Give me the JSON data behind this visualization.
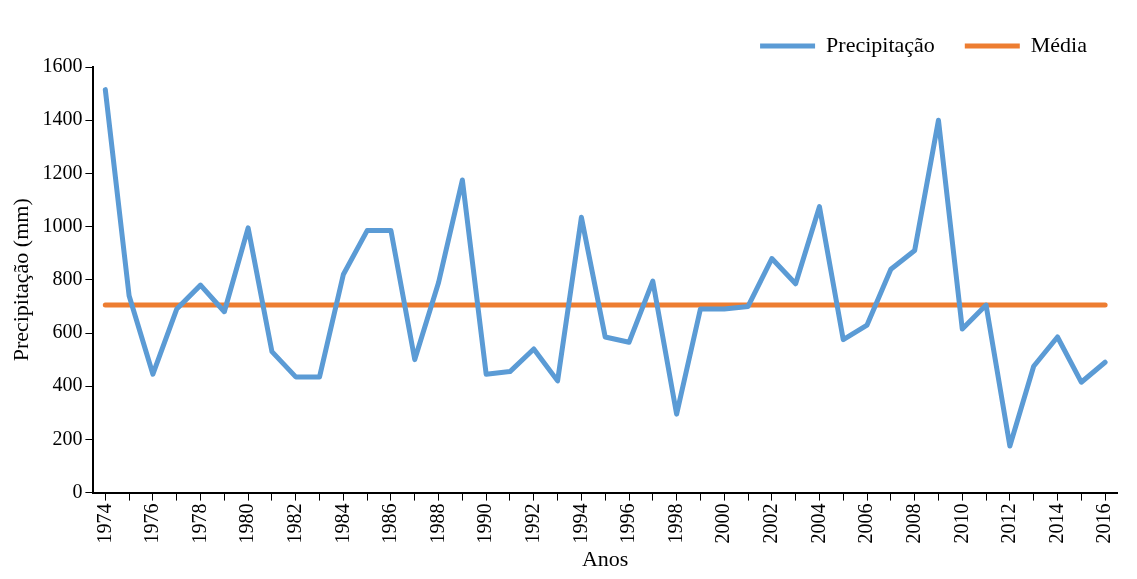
{
  "chart_data": {
    "type": "line",
    "xlabel": "Anos",
    "ylabel": "Precipitação (mm)",
    "categories": [
      "1974",
      null,
      "1976",
      null,
      "1978",
      null,
      "1980",
      null,
      "1982",
      null,
      "1984",
      null,
      "1986",
      null,
      "1988",
      null,
      "1990",
      null,
      "1992",
      null,
      "1994",
      null,
      "1996",
      null,
      "1998",
      null,
      "2000",
      null,
      "2002",
      null,
      "2004",
      null,
      "2006",
      null,
      "2008",
      null,
      "2010",
      null,
      "2012",
      null,
      "2014",
      null,
      "2016"
    ],
    "series": [
      {
        "name": "Precipitação",
        "color": "#5b9bd5",
        "values": [
          1515,
          740,
          445,
          690,
          780,
          680,
          995,
          530,
          435,
          435,
          820,
          985,
          985,
          500,
          790,
          1175,
          445,
          455,
          540,
          420,
          1035,
          585,
          565,
          795,
          295,
          690,
          690,
          700,
          880,
          785,
          1075,
          575,
          630,
          840,
          910,
          1400,
          615,
          705,
          175,
          475,
          585,
          415,
          490
        ]
      },
      {
        "name": "Média",
        "color": "#ed7d31",
        "values": [
          705,
          705,
          705,
          705,
          705,
          705,
          705,
          705,
          705,
          705,
          705,
          705,
          705,
          705,
          705,
          705,
          705,
          705,
          705,
          705,
          705,
          705,
          705,
          705,
          705,
          705,
          705,
          705,
          705,
          705,
          705,
          705,
          705,
          705,
          705,
          705,
          705,
          705,
          705,
          705,
          705,
          705,
          705
        ]
      }
    ],
    "ylim": [
      0,
      1600
    ],
    "yticks": [
      0,
      200,
      400,
      600,
      800,
      1000,
      1200,
      1400,
      1600
    ],
    "grid": false,
    "legend": "top right",
    "marker": "none",
    "line_style": "solid"
  }
}
